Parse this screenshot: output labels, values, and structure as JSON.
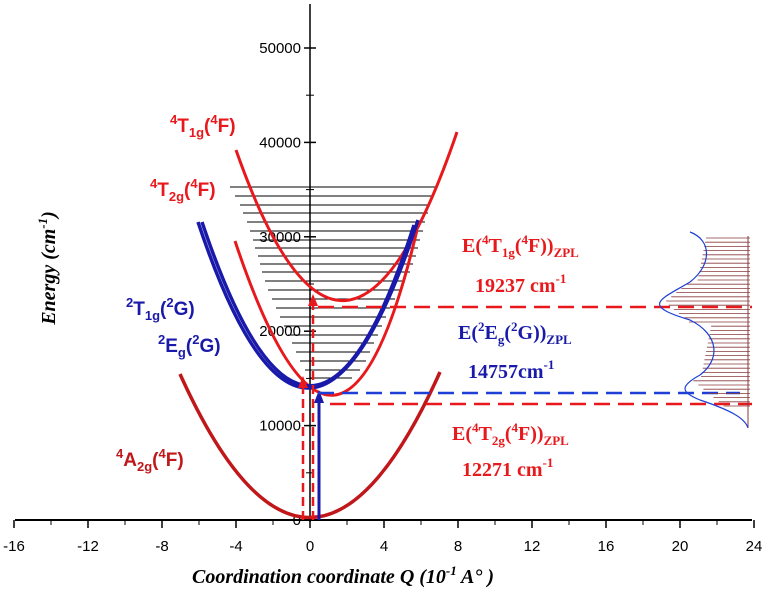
{
  "axes": {
    "x_title": "Coordination coordinate Q (10",
    "x_title_sup": "-1",
    "x_title_end": " A° )",
    "y_title": "Energy (cm",
    "y_title_sup": "-1",
    "y_title_end": ")",
    "x_ticks": [
      "-16",
      "-12",
      "-8",
      "-4",
      "0",
      "4",
      "8",
      "12",
      "16",
      "20",
      "24"
    ],
    "y_ticks": [
      "0",
      "10000",
      "20000",
      "30000",
      "40000",
      "50000"
    ]
  },
  "states": [
    {
      "id": "4T1g",
      "sup": "4",
      "main": "T",
      "sub": "1g",
      "paren_sup": "4",
      "paren_main": "F",
      "color": "#e8191c"
    },
    {
      "id": "4T2g",
      "sup": "4",
      "main": "T",
      "sub": "2g",
      "paren_sup": "4",
      "paren_main": "F",
      "color": "#e8191c"
    },
    {
      "id": "2T1g",
      "sup": "2",
      "main": "T",
      "sub": "1g",
      "paren_sup": "2",
      "paren_main": "G",
      "color": "#1a1aaa"
    },
    {
      "id": "2Eg",
      "sup": "2",
      "main": "E",
      "sub": "g",
      "paren_sup": "2",
      "paren_main": "G",
      "color": "#1a1aaa"
    },
    {
      "id": "4A2g",
      "sup": "4",
      "main": "A",
      "sub": "2g",
      "paren_sup": "4",
      "paren_main": "F",
      "color": "#c0171b"
    }
  ],
  "zpl": [
    {
      "id": "zpl-4T1g",
      "prefix": "E(",
      "sup1": "4",
      "main": "T",
      "sub1": "1g",
      "mid": "(",
      "sup2": "4",
      "main2": "F))",
      "sub2": "ZPL",
      "value": "19237 cm",
      "value_sup": "-1",
      "color": "#e8191c"
    },
    {
      "id": "zpl-2Eg",
      "prefix": "E(",
      "sup1": "2",
      "main": "E",
      "sub1": "g",
      "mid": "(",
      "sup2": "2",
      "main2": "G))",
      "sub2": "ZPL",
      "value": "14757cm",
      "value_sup": "-1",
      "color": "#1a1aaa"
    },
    {
      "id": "zpl-4T2g",
      "prefix": "E(",
      "sup1": "4",
      "main": "T",
      "sub1": "2g",
      "mid": "(",
      "sup2": "4",
      "main2": "F))",
      "sub2": "ZPL",
      "value": "12271 cm",
      "value_sup": "-1",
      "color": "#e8191c"
    }
  ],
  "colors": {
    "red": "#e8191c",
    "darkred": "#c0171b",
    "blue": "#1a1aaa",
    "dashblue": "#1d3fd6",
    "spectrum_fill": "#8b3a3a"
  }
}
